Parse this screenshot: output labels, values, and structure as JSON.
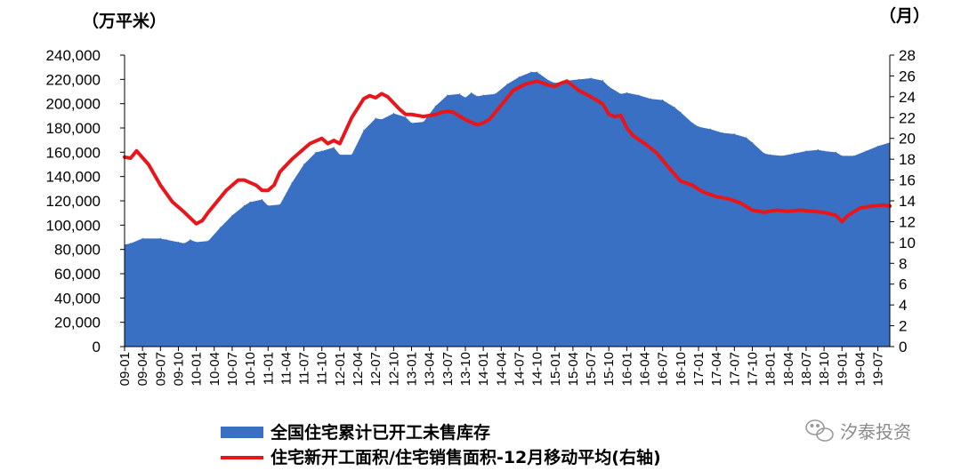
{
  "chart_data": {
    "type": "area",
    "left_unit": "（万平米）",
    "right_unit": "（月）",
    "left_axis": {
      "min": 0,
      "max": 240000,
      "step": 20000,
      "tick_labels": [
        "0",
        "20,000",
        "40,000",
        "60,000",
        "80,000",
        "100,000",
        "120,000",
        "140,000",
        "160,000",
        "180,000",
        "200,000",
        "220,000",
        "240,000"
      ]
    },
    "right_axis": {
      "min": 0,
      "max": 28,
      "step": 2,
      "tick_labels": [
        "0",
        "2",
        "4",
        "6",
        "8",
        "10",
        "12",
        "14",
        "16",
        "18",
        "20",
        "22",
        "24",
        "26",
        "28"
      ]
    },
    "x_tick_labels": [
      "09-01",
      "09-04",
      "09-07",
      "09-10",
      "10-01",
      "10-04",
      "10-07",
      "10-10",
      "11-01",
      "11-04",
      "11-07",
      "11-10",
      "12-01",
      "12-04",
      "12-07",
      "12-10",
      "13-01",
      "13-04",
      "13-07",
      "13-10",
      "14-01",
      "14-04",
      "14-07",
      "14-10",
      "15-01",
      "15-04",
      "15-07",
      "15-10",
      "16-01",
      "16-04",
      "16-07",
      "16-10",
      "17-01",
      "17-04",
      "17-07",
      "17-10",
      "18-01",
      "18-04",
      "18-07",
      "18-10",
      "19-01",
      "19-04",
      "19-07"
    ],
    "start_month": "2009-01",
    "end_month": "2019-09",
    "series": [
      {
        "name": "全国住宅累计已开工未售库存",
        "type": "area",
        "axis": "left",
        "color": "#3a70c4",
        "x": [
          "2009-01",
          "2009-02",
          "2009-04",
          "2009-07",
          "2009-08",
          "2009-10",
          "2009-11",
          "2009-12",
          "2010-01",
          "2010-03",
          "2010-05",
          "2010-07",
          "2010-09",
          "2010-10",
          "2010-12",
          "2011-01",
          "2011-03",
          "2011-05",
          "2011-07",
          "2011-09",
          "2011-10",
          "2011-12",
          "2012-01",
          "2012-03",
          "2012-05",
          "2012-07",
          "2012-08",
          "2012-10",
          "2012-12",
          "2013-01",
          "2013-03",
          "2013-05",
          "2013-07",
          "2013-09",
          "2013-10",
          "2013-11",
          "2013-12",
          "2014-01",
          "2014-03",
          "2014-05",
          "2014-07",
          "2014-09",
          "2014-10",
          "2014-12",
          "2015-01",
          "2015-03",
          "2015-05",
          "2015-07",
          "2015-09",
          "2015-10",
          "2015-12",
          "2016-01",
          "2016-03",
          "2016-05",
          "2016-07",
          "2016-09",
          "2016-10",
          "2016-12",
          "2017-01",
          "2017-03",
          "2017-05",
          "2017-07",
          "2017-09",
          "2017-10",
          "2017-12",
          "2018-01",
          "2018-03",
          "2018-05",
          "2018-07",
          "2018-09",
          "2018-10",
          "2018-12",
          "2019-01",
          "2019-03",
          "2019-05",
          "2019-07",
          "2019-09"
        ],
        "values": [
          84000,
          85000,
          89000,
          89000,
          88000,
          86000,
          85000,
          88000,
          86000,
          87000,
          98000,
          108000,
          116000,
          119000,
          121000,
          116000,
          117000,
          135000,
          150000,
          160000,
          161000,
          164000,
          158000,
          158000,
          178000,
          188000,
          187000,
          192000,
          189000,
          184000,
          185000,
          198000,
          207000,
          208000,
          205000,
          209000,
          206000,
          207000,
          208000,
          216000,
          222000,
          226000,
          226000,
          219000,
          217000,
          219000,
          220000,
          221000,
          219000,
          214000,
          208000,
          209000,
          207000,
          204000,
          203000,
          197000,
          193000,
          184000,
          181000,
          179000,
          176000,
          175000,
          172000,
          168000,
          159000,
          158000,
          157000,
          159000,
          161000,
          162000,
          161000,
          160000,
          157000,
          157000,
          161000,
          165000,
          168000
        ]
      },
      {
        "name": "住宅新开工面积/住宅销售面积-12月移动平均(右轴)",
        "type": "line",
        "axis": "right",
        "color": "#e8161b",
        "x": [
          "2009-01",
          "2009-02",
          "2009-03",
          "2009-05",
          "2009-07",
          "2009-09",
          "2009-11",
          "2010-01",
          "2010-02",
          "2010-03",
          "2010-04",
          "2010-06",
          "2010-08",
          "2010-09",
          "2010-11",
          "2010-12",
          "2011-01",
          "2011-02",
          "2011-03",
          "2011-05",
          "2011-07",
          "2011-08",
          "2011-10",
          "2011-11",
          "2011-12",
          "2012-01",
          "2012-03",
          "2012-05",
          "2012-06",
          "2012-07",
          "2012-08",
          "2012-09",
          "2012-11",
          "2012-12",
          "2013-01",
          "2013-03",
          "2013-05",
          "2013-06",
          "2013-07",
          "2013-08",
          "2013-10",
          "2013-12",
          "2014-01",
          "2014-02",
          "2014-04",
          "2014-06",
          "2014-08",
          "2014-10",
          "2014-12",
          "2015-01",
          "2015-02",
          "2015-03",
          "2015-05",
          "2015-07",
          "2015-09",
          "2015-10",
          "2015-11",
          "2015-12",
          "2016-01",
          "2016-02",
          "2016-04",
          "2016-06",
          "2016-08",
          "2016-10",
          "2016-12",
          "2017-01",
          "2017-02",
          "2017-04",
          "2017-06",
          "2017-08",
          "2017-10",
          "2017-12",
          "2018-01",
          "2018-02",
          "2018-04",
          "2018-06",
          "2018-08",
          "2018-10",
          "2018-12",
          "2019-01",
          "2019-02",
          "2019-04",
          "2019-06",
          "2019-08",
          "2019-09"
        ],
        "values": [
          18.2,
          18.1,
          18.8,
          17.5,
          15.5,
          13.9,
          12.9,
          11.8,
          12.1,
          12.9,
          13.6,
          15.0,
          16.0,
          16.0,
          15.5,
          15.0,
          15.0,
          15.5,
          16.8,
          18.0,
          19.0,
          19.5,
          20.0,
          19.5,
          19.8,
          19.5,
          22.0,
          23.8,
          24.1,
          23.9,
          24.3,
          24.0,
          22.8,
          22.3,
          22.3,
          22.1,
          22.3,
          22.5,
          22.6,
          22.5,
          21.8,
          21.3,
          21.5,
          21.8,
          23.2,
          24.6,
          25.2,
          25.5,
          25.1,
          25.0,
          25.3,
          25.5,
          24.6,
          24.0,
          23.3,
          22.3,
          22.1,
          22.2,
          21.0,
          20.3,
          19.5,
          18.6,
          17.2,
          15.9,
          15.5,
          15.1,
          14.8,
          14.4,
          14.2,
          13.8,
          13.1,
          12.9,
          13.0,
          13.1,
          13.0,
          13.1,
          13.0,
          12.9,
          12.6,
          12.0,
          12.6,
          13.3,
          13.5,
          13.6,
          13.5
        ]
      }
    ],
    "legend": [
      "全国住宅累计已开工未售库存",
      "住宅新开工面积/住宅销售面积-12月移动平均(右轴)"
    ],
    "legend_position": "bottom",
    "grid": false
  },
  "watermark": {
    "text": "汐泰投资",
    "icon": "wechat-icon",
    "color": "#8a8a8a"
  }
}
